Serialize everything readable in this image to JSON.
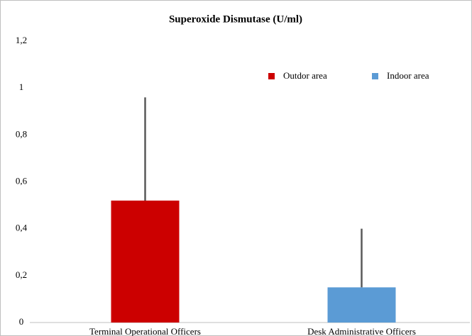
{
  "chart_data": {
    "type": "bar",
    "title": "Superoxide Dismutase (U/ml)",
    "categories": [
      "Terminal Operational Officers",
      "Desk Administrative Officers"
    ],
    "series": [
      {
        "name": "Outdor area",
        "color": "#cc0000",
        "values": [
          0.52,
          null
        ],
        "errors": [
          0.44,
          null
        ]
      },
      {
        "name": "Indoor area",
        "color": "#5b9bd5",
        "values": [
          null,
          0.15
        ],
        "errors": [
          null,
          0.25
        ]
      }
    ],
    "ylim": [
      0,
      1.2
    ],
    "yticks": [
      0,
      {
        "value": 0.2,
        "label": "0,2"
      },
      {
        "value": 0.4,
        "label": "0,4"
      },
      {
        "value": 0.6,
        "label": "0,6"
      },
      {
        "value": 0.8,
        "label": "0,8"
      },
      1,
      {
        "value": 1.2,
        "label": "1,2"
      }
    ],
    "grid": false,
    "legend": "top-right"
  }
}
